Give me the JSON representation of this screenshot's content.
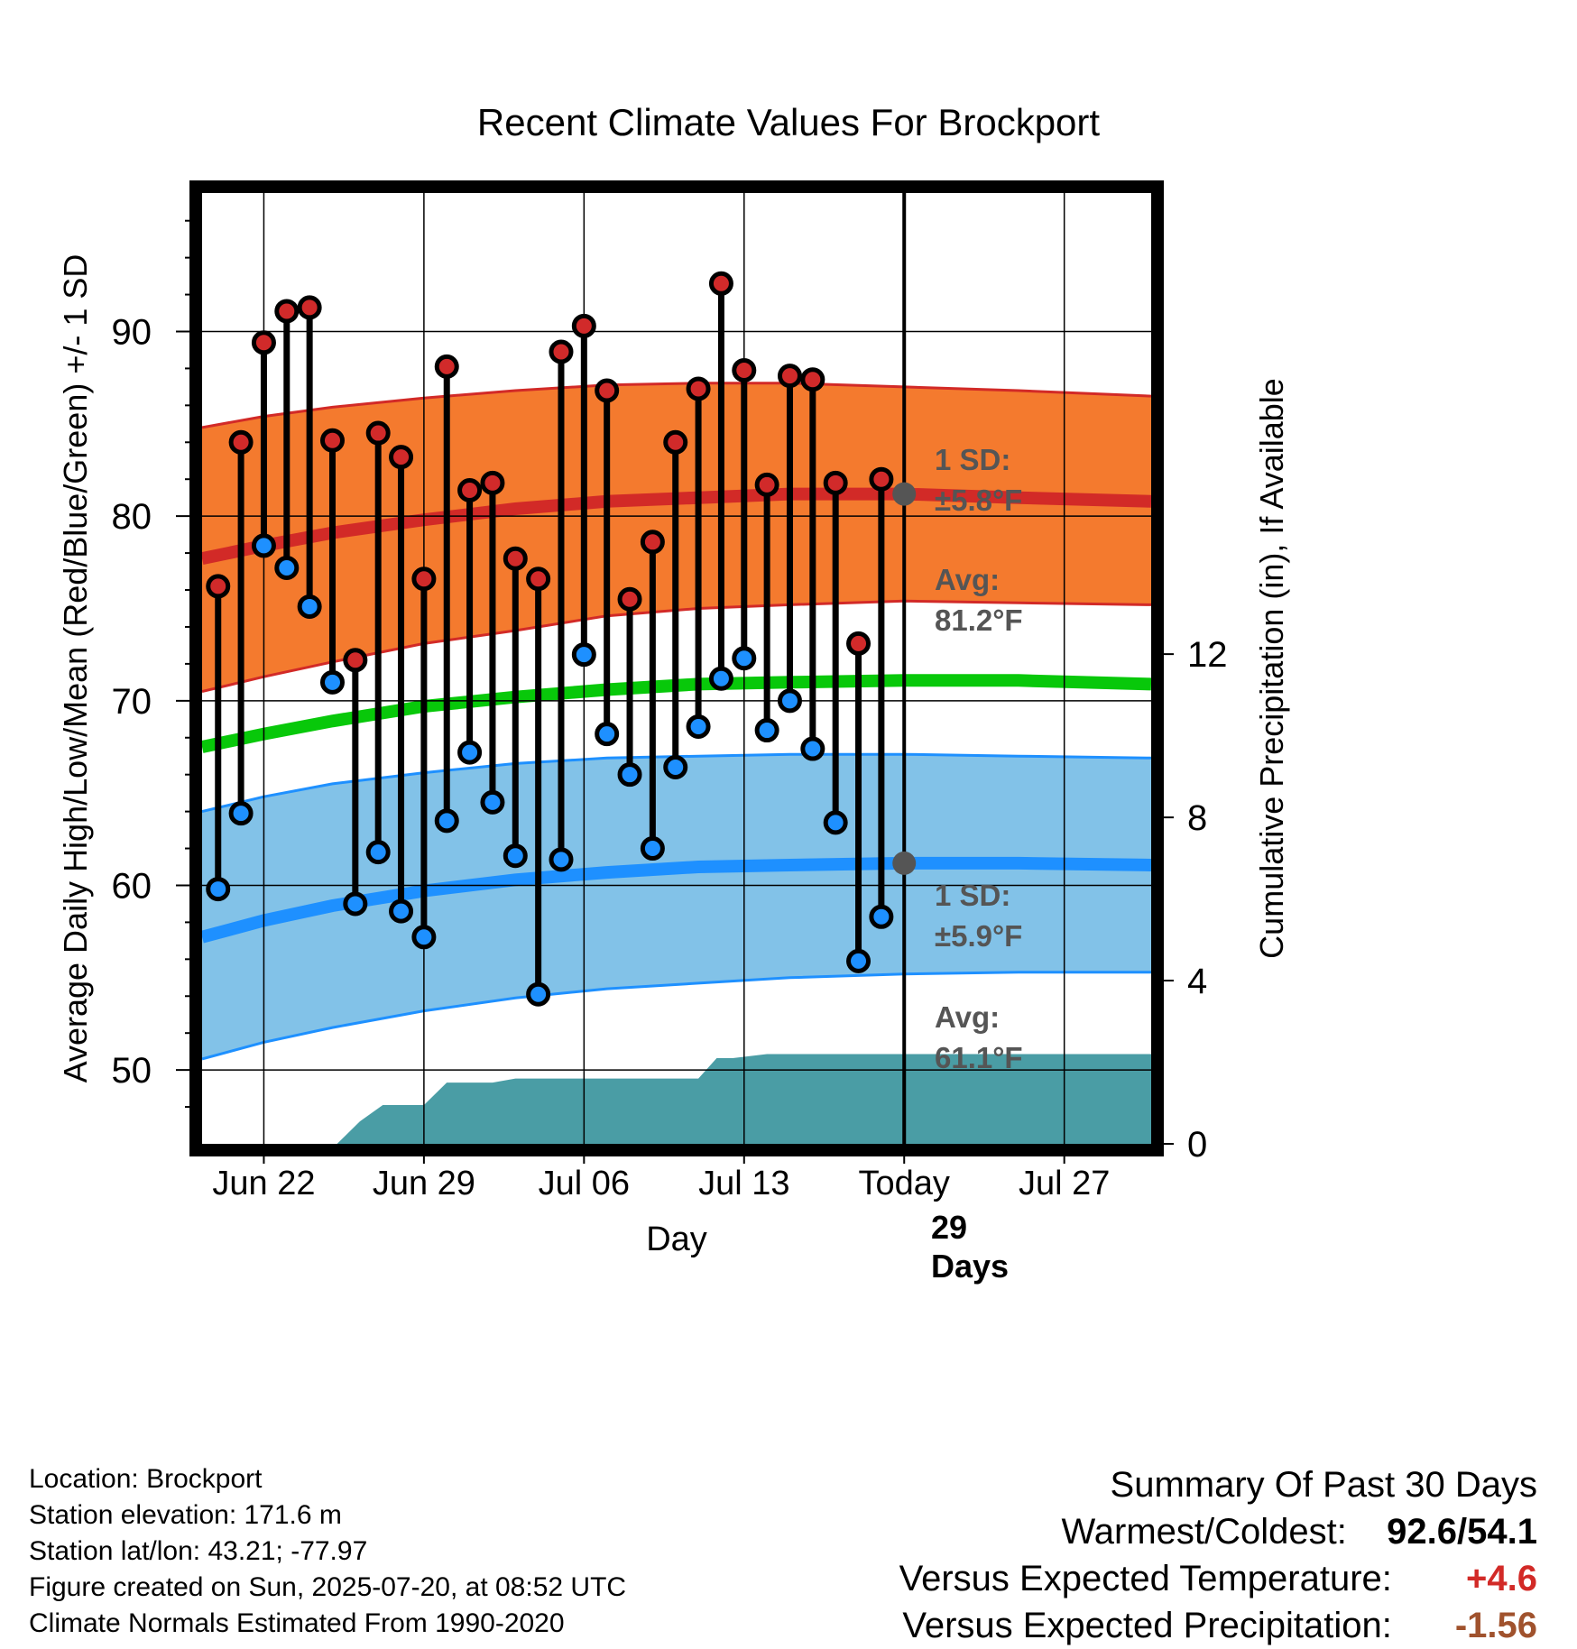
{
  "chart_data": {
    "type": "line",
    "title": "Recent Climate Values For Brockport",
    "xlabel": "Day",
    "ylabel": "Average Daily High/Low/Mean (Red/Blue/Green) +/- 1 SD",
    "y2label": "Cumulative Precipitation (in), If Available",
    "x_ticks": [
      "Jun 22",
      "Jun 29",
      "Jul 06",
      "Jul 13",
      "Today",
      "Jul 27"
    ],
    "x_tick_days": [
      2,
      9,
      16,
      23,
      30,
      37
    ],
    "xlim": [
      -0.7,
      40.8
    ],
    "ylim": [
      46,
      97.5
    ],
    "y_ticks": [
      50,
      60,
      70,
      80,
      90
    ],
    "y2lim": [
      0,
      23.3
    ],
    "y2_ticks": [
      0,
      4,
      8,
      12
    ],
    "today_day": 30,
    "grid": true,
    "days": [
      0,
      1,
      2,
      3,
      4,
      5,
      6,
      7,
      8,
      9,
      10,
      11,
      12,
      13,
      14,
      15,
      16,
      17,
      18,
      19,
      20,
      21,
      22,
      23,
      24,
      25,
      26,
      27,
      28,
      29
    ],
    "daily_high": [
      76.2,
      84.0,
      89.4,
      91.1,
      91.3,
      84.1,
      72.2,
      84.5,
      83.2,
      76.6,
      88.1,
      81.4,
      81.8,
      77.7,
      76.6,
      88.9,
      90.3,
      86.8,
      75.5,
      78.6,
      84.0,
      86.9,
      92.6,
      87.9,
      81.7,
      87.6,
      87.4,
      81.8,
      73.1,
      82.0
    ],
    "daily_low": [
      59.8,
      63.9,
      78.4,
      77.2,
      75.1,
      71.0,
      59.0,
      61.8,
      58.6,
      57.2,
      63.5,
      67.2,
      64.5,
      61.6,
      54.1,
      61.4,
      72.5,
      68.2,
      66.0,
      62.0,
      66.4,
      68.6,
      71.2,
      72.3,
      68.4,
      70.0,
      67.4,
      63.4,
      55.9,
      58.3
    ],
    "normal_high": {
      "days": [
        -0.7,
        2,
        5,
        9,
        13,
        17,
        21,
        25,
        30,
        35,
        40.8
      ],
      "mean": [
        77.7,
        78.4,
        79.1,
        79.8,
        80.4,
        80.8,
        81.0,
        81.2,
        81.2,
        81.0,
        80.8
      ],
      "upper": [
        84.8,
        85.4,
        85.9,
        86.4,
        86.8,
        87.1,
        87.2,
        87.2,
        87.0,
        86.8,
        86.5
      ],
      "lower": [
        70.5,
        71.3,
        72.1,
        73.1,
        73.8,
        74.6,
        75.0,
        75.2,
        75.4,
        75.3,
        75.2
      ]
    },
    "normal_mean": {
      "days": [
        -0.7,
        2,
        5,
        9,
        13,
        17,
        21,
        25,
        30,
        35,
        40.8
      ],
      "values": [
        67.5,
        68.2,
        68.9,
        69.7,
        70.2,
        70.6,
        70.9,
        71.0,
        71.1,
        71.1,
        70.9
      ]
    },
    "normal_low": {
      "days": [
        -0.7,
        2,
        5,
        9,
        13,
        17,
        21,
        25,
        30,
        35,
        40.8
      ],
      "mean": [
        57.2,
        58.1,
        58.9,
        59.7,
        60.3,
        60.7,
        61.0,
        61.1,
        61.2,
        61.2,
        61.1
      ],
      "upper": [
        64.0,
        64.8,
        65.5,
        66.1,
        66.6,
        66.9,
        67.0,
        67.1,
        67.1,
        67.0,
        66.9
      ],
      "lower": [
        50.6,
        51.5,
        52.3,
        53.2,
        53.9,
        54.4,
        54.7,
        55.0,
        55.2,
        55.3,
        55.3
      ]
    },
    "cumulative_precip": {
      "days": [
        -0.7,
        5.2,
        6.2,
        7.2,
        8.2,
        9.0,
        10.0,
        10.5,
        12.0,
        13.0,
        15.0,
        17.0,
        19.0,
        20.0,
        21.0,
        21.8,
        22.5,
        24.0,
        26.0,
        30.0,
        35.0,
        40.8
      ],
      "values": [
        0,
        0,
        0.55,
        0.95,
        0.95,
        0.95,
        1.5,
        1.5,
        1.5,
        1.6,
        1.6,
        1.6,
        1.6,
        1.6,
        1.6,
        2.1,
        2.1,
        2.2,
        2.2,
        2.2,
        2.2,
        2.2
      ]
    },
    "annotations": {
      "high_sd_label": "1 SD:",
      "high_sd_value": "±5.8°F",
      "high_avg_label": "Avg:",
      "high_avg_value": "81.2°F",
      "low_sd_label": "1 SD:",
      "low_sd_value": "±5.9°F",
      "low_avg_label": "Avg:",
      "low_avg_value": "61.1°F",
      "days_count": "29",
      "days_word": "Days"
    },
    "colors": {
      "high_band": "#f47a2e",
      "high_line": "#d22a27",
      "mean_line": "#08c80a",
      "low_band": "#82c2e8",
      "low_line": "#1e90ff",
      "precip": "#4a9da5",
      "high_dot": "#d12a2a",
      "low_dot": "#1e90ff",
      "annotation": "#555555"
    }
  },
  "footer": {
    "location": "Location: Brockport",
    "elevation": "Station elevation: 171.6 m",
    "latlon": "Station lat/lon: 43.21; -77.97",
    "created": "Figure created on Sun, 2025-07-20, at 08:52 UTC",
    "normals": "Climate Normals Estimated From 1990-2020"
  },
  "summary": {
    "title": "Summary Of Past 30 Days",
    "warmest_coldest_label": "Warmest/Coldest:",
    "warmest_coldest_value": "92.6/54.1",
    "temp_label": "Versus Expected Temperature:",
    "temp_value": "+4.6",
    "temp_color": "#d22a27",
    "precip_label": "Versus Expected Precipitation:",
    "precip_value": "-1.56",
    "precip_color": "#a0522d"
  }
}
